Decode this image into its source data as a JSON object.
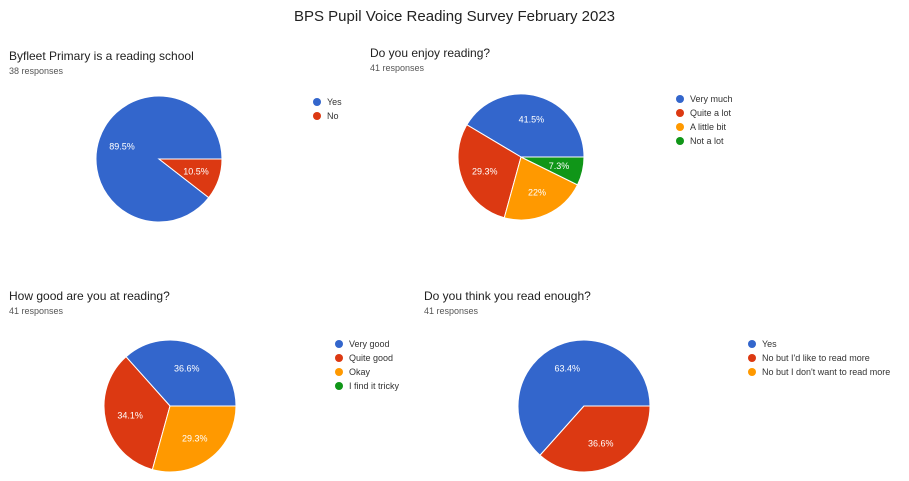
{
  "page": {
    "title": "BPS Pupil Voice Reading Survey February 2023"
  },
  "chart_data": [
    {
      "type": "pie",
      "title": "Byfleet Primary is a reading school",
      "subtitle": "38 responses",
      "categories": [
        "Yes",
        "No"
      ],
      "values": [
        89.5,
        10.5
      ],
      "labels": [
        "89.5%",
        "10.5%"
      ],
      "colors": [
        "#3366cc",
        "#dc3912"
      ],
      "legend_position": "right"
    },
    {
      "type": "pie",
      "title": "Do you enjoy reading?",
      "subtitle": "41 responses",
      "categories": [
        "Very much",
        "Quite a lot",
        "A little bit",
        "Not a lot"
      ],
      "values": [
        41.5,
        29.3,
        22,
        7.3
      ],
      "labels": [
        "41.5%",
        "29.3%",
        "22%",
        "7.3%"
      ],
      "colors": [
        "#3366cc",
        "#dc3912",
        "#ff9900",
        "#109618"
      ],
      "legend_position": "right"
    },
    {
      "type": "pie",
      "title": "How good are you at reading?",
      "subtitle": "41 responses",
      "categories": [
        "Very good",
        "Quite good",
        "Okay",
        "I find it tricky"
      ],
      "values": [
        36.6,
        34.1,
        29.3,
        0
      ],
      "labels": [
        "36.6%",
        "34.1%",
        "29.3%",
        ""
      ],
      "colors": [
        "#3366cc",
        "#dc3912",
        "#ff9900",
        "#109618"
      ],
      "legend_position": "right"
    },
    {
      "type": "pie",
      "title": "Do you think you read enough?",
      "subtitle": "41 responses",
      "categories": [
        "Yes",
        "No but I'd like to read more",
        "No but I don't want to read more"
      ],
      "values": [
        63.4,
        36.6,
        0
      ],
      "labels": [
        "63.4%",
        "36.6%",
        ""
      ],
      "colors": [
        "#3366cc",
        "#dc3912",
        "#ff9900"
      ],
      "legend_position": "right"
    }
  ]
}
